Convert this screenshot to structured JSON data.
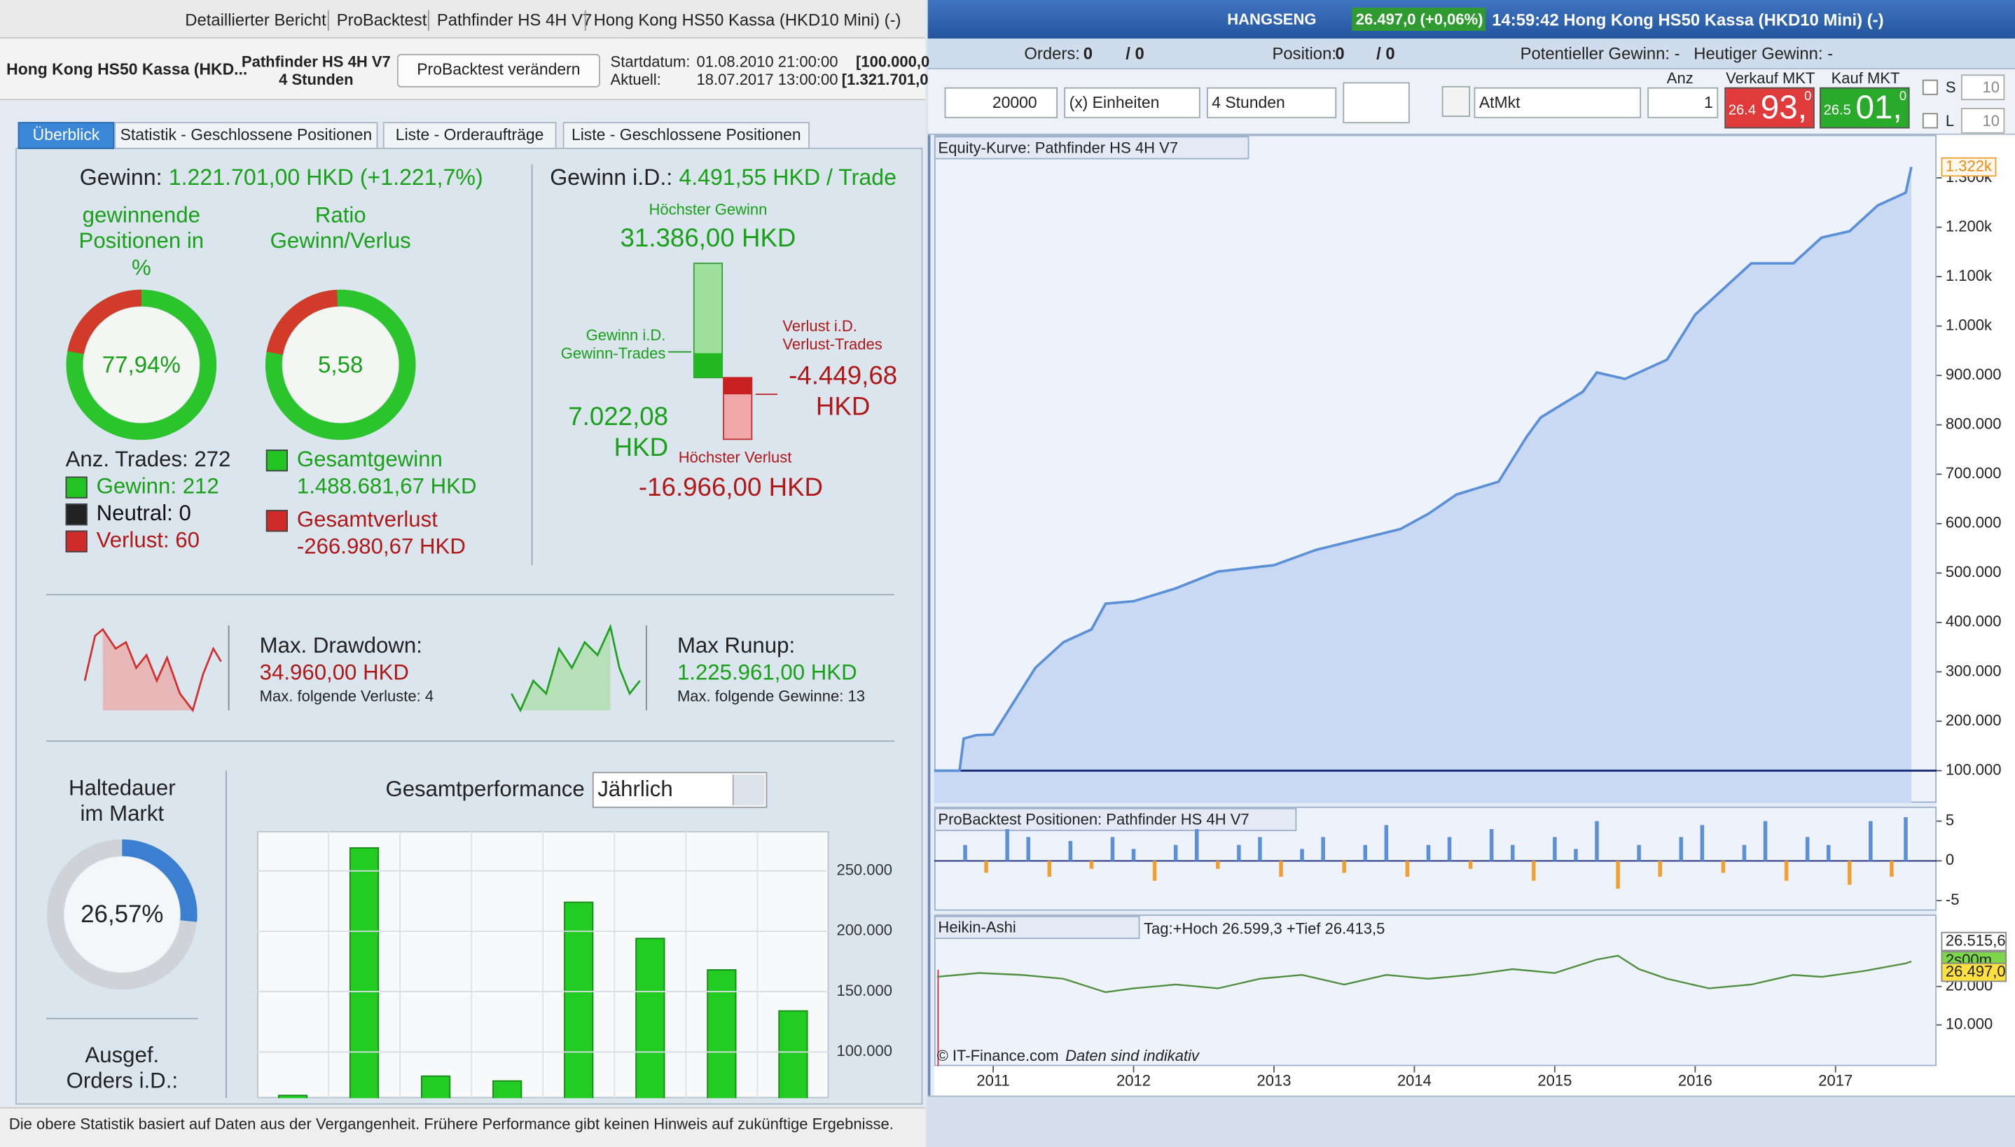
{
  "left_window": {
    "title_bar": [
      "Detaillierter Bericht",
      "ProBacktest",
      "Pathfinder HS 4H V7",
      "Hong Kong HS50 Kassa (HKD10 Mini) (-)"
    ],
    "header": {
      "instrument": "Hong Kong HS50 Kassa (HKD...",
      "system": "Pathfinder HS 4H V7",
      "timeframe": "4 Stunden",
      "button": "ProBacktest verändern",
      "start_label": "Startdatum:",
      "start_date": "01.08.2010 21:00:00",
      "start_capital": "[100.000,0",
      "current_label": "Aktuell:",
      "current_date": "18.07.2017 13:00:00",
      "current_capital": "[1.321.701,0"
    },
    "tabs": [
      "Überblick",
      "Statistik - Geschlossene Positionen",
      "Liste - Orderaufträge",
      "Liste - Geschlossene Positionen"
    ],
    "overview": {
      "gain_label": "Gewinn:",
      "gain": "1.221.701,00 HKD (+1.221,7%)",
      "win_pct_title": "gewinnende Positionen in %",
      "win_pct": {
        "value": 77.94,
        "label": "77,94%"
      },
      "ratio_title": "Ratio Gewinn/Verlus",
      "ratio": "5,58",
      "trades": "Anz. Trades: 272",
      "winners": "Gewinn: 212",
      "neutral": "Neutral: 0",
      "losers": "Verlust: 60",
      "total_gain_label": "Gesamtgewinn",
      "total_gain": "1.488.681,67 HKD",
      "total_loss_label": "Gesamtverlust",
      "total_loss": "-266.980,67 HKD",
      "avg_label": "Gewinn i.D.:",
      "avg": "4.491,55 HKD / Trade",
      "best_label": "Höchster Gewinn",
      "best": "31.386,00 HKD",
      "avg_win_label": "Gewinn i.D. Gewinn-Trades",
      "avg_win": "7.022,08 HKD",
      "avg_loss_label": "Verlust i.D. Verlust-Trades",
      "avg_loss": "-4.449,68 HKD",
      "worst_label": "Höchster Verlust",
      "worst": "-16.966,00 HKD",
      "drawdown_label": "Max. Drawdown:",
      "drawdown": "34.960,00 HKD",
      "drawdown_note": "Max. folgende Verluste: 4",
      "runup_label": "Max Runup:",
      "runup": "1.225.961,00 HKD",
      "runup_note": "Max. folgende Gewinne: 13",
      "holding_title": "Haltedauer im Markt",
      "holding": {
        "value": 26.57,
        "label": "26,57%"
      },
      "orders_title": "Ausgef. Orders i.D.:",
      "perf_title": "Gesamtperformance",
      "perf_select": "Jährlich"
    },
    "performance_chart": {
      "type": "bar",
      "categories": [
        null,
        null,
        null,
        null,
        null,
        null,
        null,
        null
      ],
      "values": [
        64000,
        269000,
        80000,
        76000,
        224000,
        194000,
        168000,
        134000
      ],
      "color": "#22cc22",
      "ylim": [
        0,
        283000
      ],
      "yticks": [
        {
          "value": 100000,
          "label": "100.000"
        },
        {
          "value": 150000,
          "label": "150.000"
        },
        {
          "value": 200000,
          "label": "200.000"
        },
        {
          "value": 250000,
          "label": "250.000"
        }
      ],
      "grid": true
    },
    "footer": "Die obere Statistik basiert auf Daten aus der Vergangenheit. Frühere Performance gibt keinen Hinweis auf zukünftige Ergebnisse."
  },
  "right_window": {
    "title_bar": {
      "ticker": "HANGSENG",
      "quote": "26.497,0 (+0,06%)",
      "time_title": "14:59:42 Hong Kong HS50 Kassa (HKD10 Mini) (-)"
    },
    "status": {
      "orders_label": "Orders:",
      "orders": "0",
      "orders_total": "/ 0",
      "position_label": "Position:",
      "position": "0",
      "position_total": "/ 0",
      "potential": "Potentieller Gewinn: -",
      "today": "Heutiger Gewinn: -"
    },
    "order_bar": {
      "quantity": "20000",
      "units": "(x) Einheiten",
      "timeframe": "4 Stunden",
      "order_type": "AtMkt",
      "anz_label": "Anz",
      "anz": "1",
      "sell_label": "Verkauf MKT",
      "sell_small": "26.4",
      "sell_big": "93,",
      "sell_frac": "0",
      "buy_label": "Kauf MKT",
      "buy_small": "26.5",
      "buy_big": "01,",
      "buy_frac": "0",
      "s_label": "S",
      "s_value": "10",
      "l_label": "L",
      "l_value": "10"
    },
    "equity_title": "Equity-Kurve: Pathfinder HS 4H V7",
    "positions_title": "ProBacktest Positionen: Pathfinder HS 4H V7",
    "ha_title": "Heikin-Ashi",
    "ha_info": "Tag:+Hoch 26.599,3 +Tief 26.413,5",
    "copyright": "© IT-Finance.com",
    "disclaimer": "Daten sind indikativ",
    "charts": [
      {
        "type": "area",
        "x": [
          2010.58,
          2010.76,
          2010.79,
          2010.88,
          2011.0,
          2011.3,
          2011.5,
          2011.7,
          2011.8,
          2012.0,
          2012.3,
          2012.6,
          2013.0,
          2013.3,
          2013.6,
          2013.9,
          2014.1,
          2014.3,
          2014.6,
          2014.8,
          2014.9,
          2015.2,
          2015.3,
          2015.5,
          2015.8,
          2016.0,
          2016.2,
          2016.4,
          2016.7,
          2016.9,
          2017.1,
          2017.3,
          2017.5,
          2017.54
        ],
        "values": [
          100000,
          100000,
          165000,
          172000,
          173000,
          308000,
          360000,
          386000,
          438000,
          443000,
          469000,
          503000,
          516000,
          547000,
          568000,
          589000,
          620000,
          659000,
          685000,
          776000,
          815000,
          867000,
          906000,
          893000,
          932000,
          1023000,
          1075000,
          1127000,
          1127000,
          1179000,
          1192000,
          1244000,
          1270000,
          1322000
        ],
        "color": "#5b8fd6",
        "fill": "#c9d9f4",
        "baseline": 100000,
        "last_label": "1.322k",
        "xlim": [
          2010.58,
          2017.72
        ],
        "xticks": [
          2011,
          2012,
          2013,
          2014,
          2015,
          2016,
          2017
        ],
        "ylim": [
          35000,
          1335000
        ],
        "yticks": [
          {
            "value": 100000,
            "label": "100.000"
          },
          {
            "value": 200000,
            "label": "200.000"
          },
          {
            "value": 300000,
            "label": "300.000"
          },
          {
            "value": 400000,
            "label": "400.000"
          },
          {
            "value": 500000,
            "label": "500.000"
          },
          {
            "value": 600000,
            "label": "600.000"
          },
          {
            "value": 700000,
            "label": "700.000"
          },
          {
            "value": 800000,
            "label": "800.000"
          },
          {
            "value": 900000,
            "label": "900.000"
          },
          {
            "value": 1000000,
            "label": "1.000k"
          },
          {
            "value": 1100000,
            "label": "1.100k"
          },
          {
            "value": 1200000,
            "label": "1.200k"
          },
          {
            "value": 1300000,
            "label": "1.300k"
          }
        ]
      },
      {
        "type": "bar",
        "x": [
          2010.8,
          2010.95,
          2011.1,
          2011.25,
          2011.4,
          2011.55,
          2011.7,
          2011.85,
          2012.0,
          2012.15,
          2012.3,
          2012.45,
          2012.6,
          2012.75,
          2012.9,
          2013.05,
          2013.2,
          2013.35,
          2013.5,
          2013.65,
          2013.8,
          2013.95,
          2014.1,
          2014.25,
          2014.4,
          2014.55,
          2014.7,
          2014.85,
          2015.0,
          2015.15,
          2015.3,
          2015.45,
          2015.6,
          2015.75,
          2015.9,
          2016.05,
          2016.2,
          2016.35,
          2016.5,
          2016.65,
          2016.8,
          2016.95,
          2017.1,
          2017.25,
          2017.4,
          2017.5
        ],
        "values": [
          2,
          -1.5,
          4,
          3,
          -2,
          2.5,
          -1,
          3,
          1.5,
          -2.5,
          2,
          4,
          -1,
          2,
          3,
          -2,
          1.5,
          3,
          -1.5,
          2,
          4.5,
          -2,
          2,
          3,
          -1,
          4,
          2,
          -2.5,
          3,
          1.5,
          5,
          -3.5,
          2,
          -2,
          3,
          4.5,
          -1.5,
          2,
          5,
          -2.5,
          3,
          2,
          -3,
          5,
          -2,
          5.5
        ],
        "color": "#5b8fd6",
        "negative_color": "#f0a030",
        "xlim": [
          2010.58,
          2017.72
        ],
        "ylim": [
          -6.1,
          6.5
        ],
        "yticks": [
          5,
          0,
          -5
        ]
      },
      {
        "type": "line",
        "x": [
          2010.6,
          2010.9,
          2011.2,
          2011.5,
          2011.8,
          2012.0,
          2012.3,
          2012.6,
          2012.9,
          2013.2,
          2013.5,
          2013.8,
          2014.1,
          2014.4,
          2014.7,
          2015.0,
          2015.3,
          2015.45,
          2015.6,
          2015.8,
          2016.1,
          2016.4,
          2016.7,
          2016.9,
          2017.2,
          2017.5,
          2017.54
        ],
        "values": [
          22500,
          23500,
          23000,
          22000,
          18500,
          19500,
          20500,
          19500,
          22000,
          23000,
          20500,
          23000,
          22000,
          23000,
          24500,
          23500,
          27000,
          28000,
          24500,
          22000,
          19500,
          20500,
          23000,
          22500,
          24000,
          26000,
          26500
        ],
        "color": "#4f8f3f",
        "xlim": [
          2010.58,
          2017.72
        ],
        "ylim": [
          -700,
          38700
        ],
        "yticks": [
          {
            "value": 20000,
            "label": "20.000"
          },
          {
            "value": 10000,
            "label": "10.000"
          }
        ],
        "price_tags": [
          "26.515,6",
          "2s00m",
          "26.497,0"
        ]
      }
    ]
  }
}
